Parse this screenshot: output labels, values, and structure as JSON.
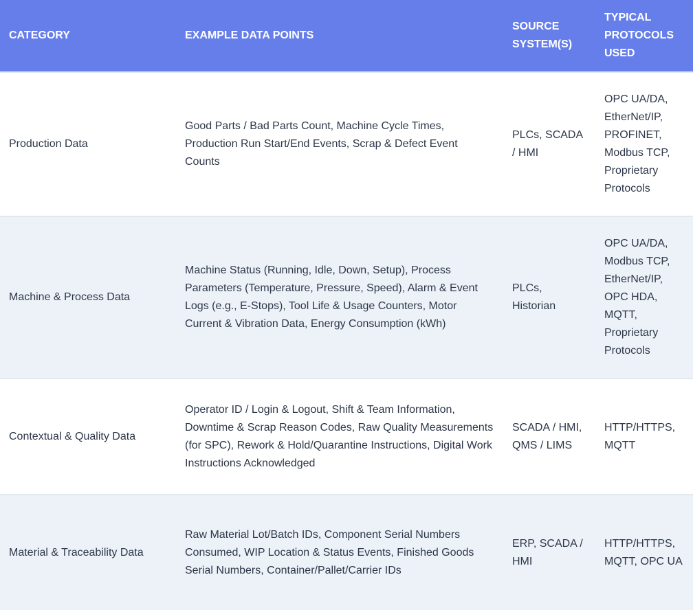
{
  "colors": {
    "header_bg": "#667eea",
    "alt_row_bg": "#edf2f8"
  },
  "headers": [
    "Category",
    "Example Data Points",
    "Source System(s)",
    "Typical Protocols Used"
  ],
  "rows": [
    [
      "Production Data",
      "Good Parts / Bad Parts Count, Machine Cycle Times, Production Run Start/End Events, Scrap & Defect Event Counts",
      "PLCs, SCADA / HMI",
      "OPC UA/DA, EtherNet/IP, PROFINET, Modbus TCP, Proprietary Protocols"
    ],
    [
      "Machine & Process Data",
      "Machine Status (Running, Idle, Down, Setup), Process Parameters (Temperature, Pressure, Speed), Alarm & Event Logs (e.g., E-Stops), Tool Life & Usage Counters, Motor Current & Vibration Data, Energy Consumption (kWh)",
      "PLCs, Historian",
      "OPC UA/DA, Modbus TCP, EtherNet/IP, OPC HDA, MQTT, Proprietary Protocols"
    ],
    [
      "Contextual & Quality Data",
      "Operator ID / Login & Logout, Shift & Team Information, Downtime & Scrap Reason Codes, Raw Quality Measurements (for SPC), Rework & Hold/Quarantine Instructions, Digital Work Instructions Acknowledged",
      "SCADA / HMI, QMS / LIMS",
      "HTTP/HTTPS, MQTT"
    ],
    [
      "Material & Traceability Data",
      "Raw Material Lot/Batch IDs, Component Serial Numbers Consumed, WIP Location & Status Events, Finished Goods Serial Numbers, Container/Pallet/Carrier IDs",
      "ERP, SCADA / HMI",
      "HTTP/HTTPS, MQTT, OPC UA"
    ]
  ]
}
